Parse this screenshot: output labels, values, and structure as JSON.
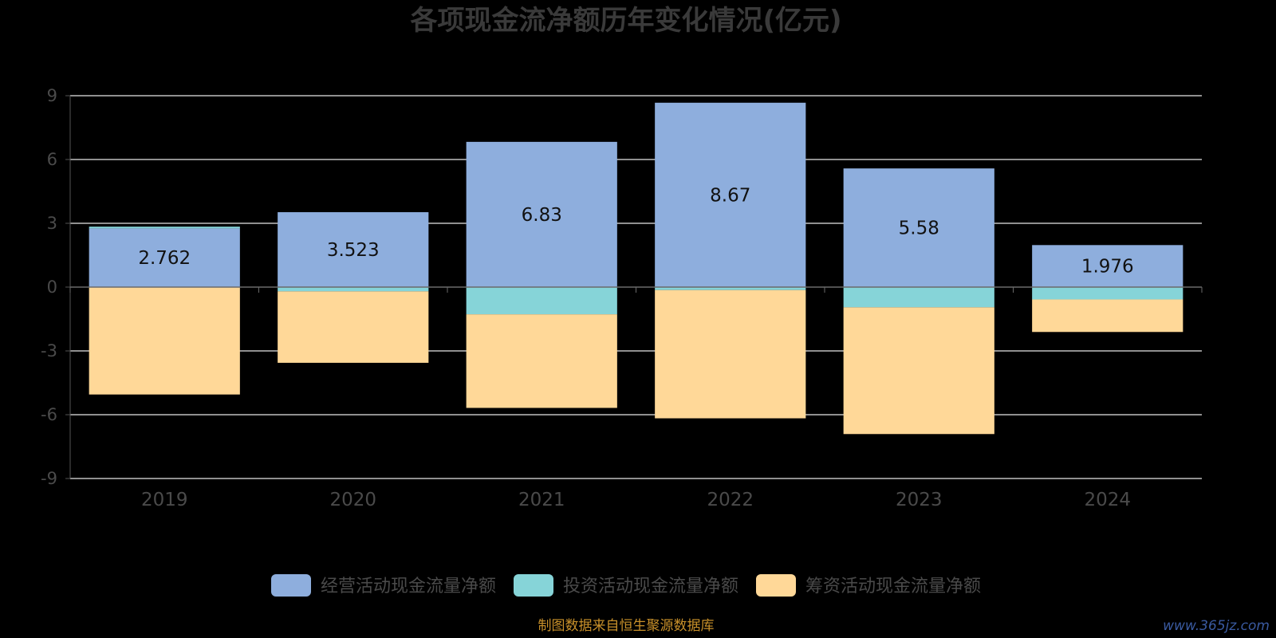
{
  "chart_data": {
    "type": "bar",
    "stacked": true,
    "title": "各项现金流净额历年变化情况(亿元)",
    "categories": [
      "2019",
      "2020",
      "2021",
      "2022",
      "2023",
      "2024"
    ],
    "ylim": [
      -9,
      9
    ],
    "yticks": [
      "9",
      "6",
      "3",
      "0",
      "-3",
      "-6",
      "-9"
    ],
    "grid": true,
    "legend_position": "bottom",
    "series": [
      {
        "name": "经营活动现金流量净额",
        "color": "#8eaedd",
        "values": [
          2.762,
          3.523,
          6.83,
          8.67,
          5.58,
          1.976
        ]
      },
      {
        "name": "投资活动现金流量净额",
        "color": "#86d4d8",
        "values": [
          0.08,
          -0.2,
          -1.28,
          -0.14,
          -0.95,
          -0.58
        ]
      },
      {
        "name": "筹资活动现金流量净额",
        "color": "#ffd898",
        "values": [
          -5.05,
          -3.36,
          -4.4,
          -6.03,
          -5.96,
          -1.53
        ]
      }
    ],
    "data_labels": [
      "2.762",
      "3.523",
      "6.83",
      "8.67",
      "5.58",
      "1.976"
    ]
  },
  "footer": {
    "source": "制图数据来自恒生聚源数据库",
    "watermark": "www.365jz.com"
  }
}
